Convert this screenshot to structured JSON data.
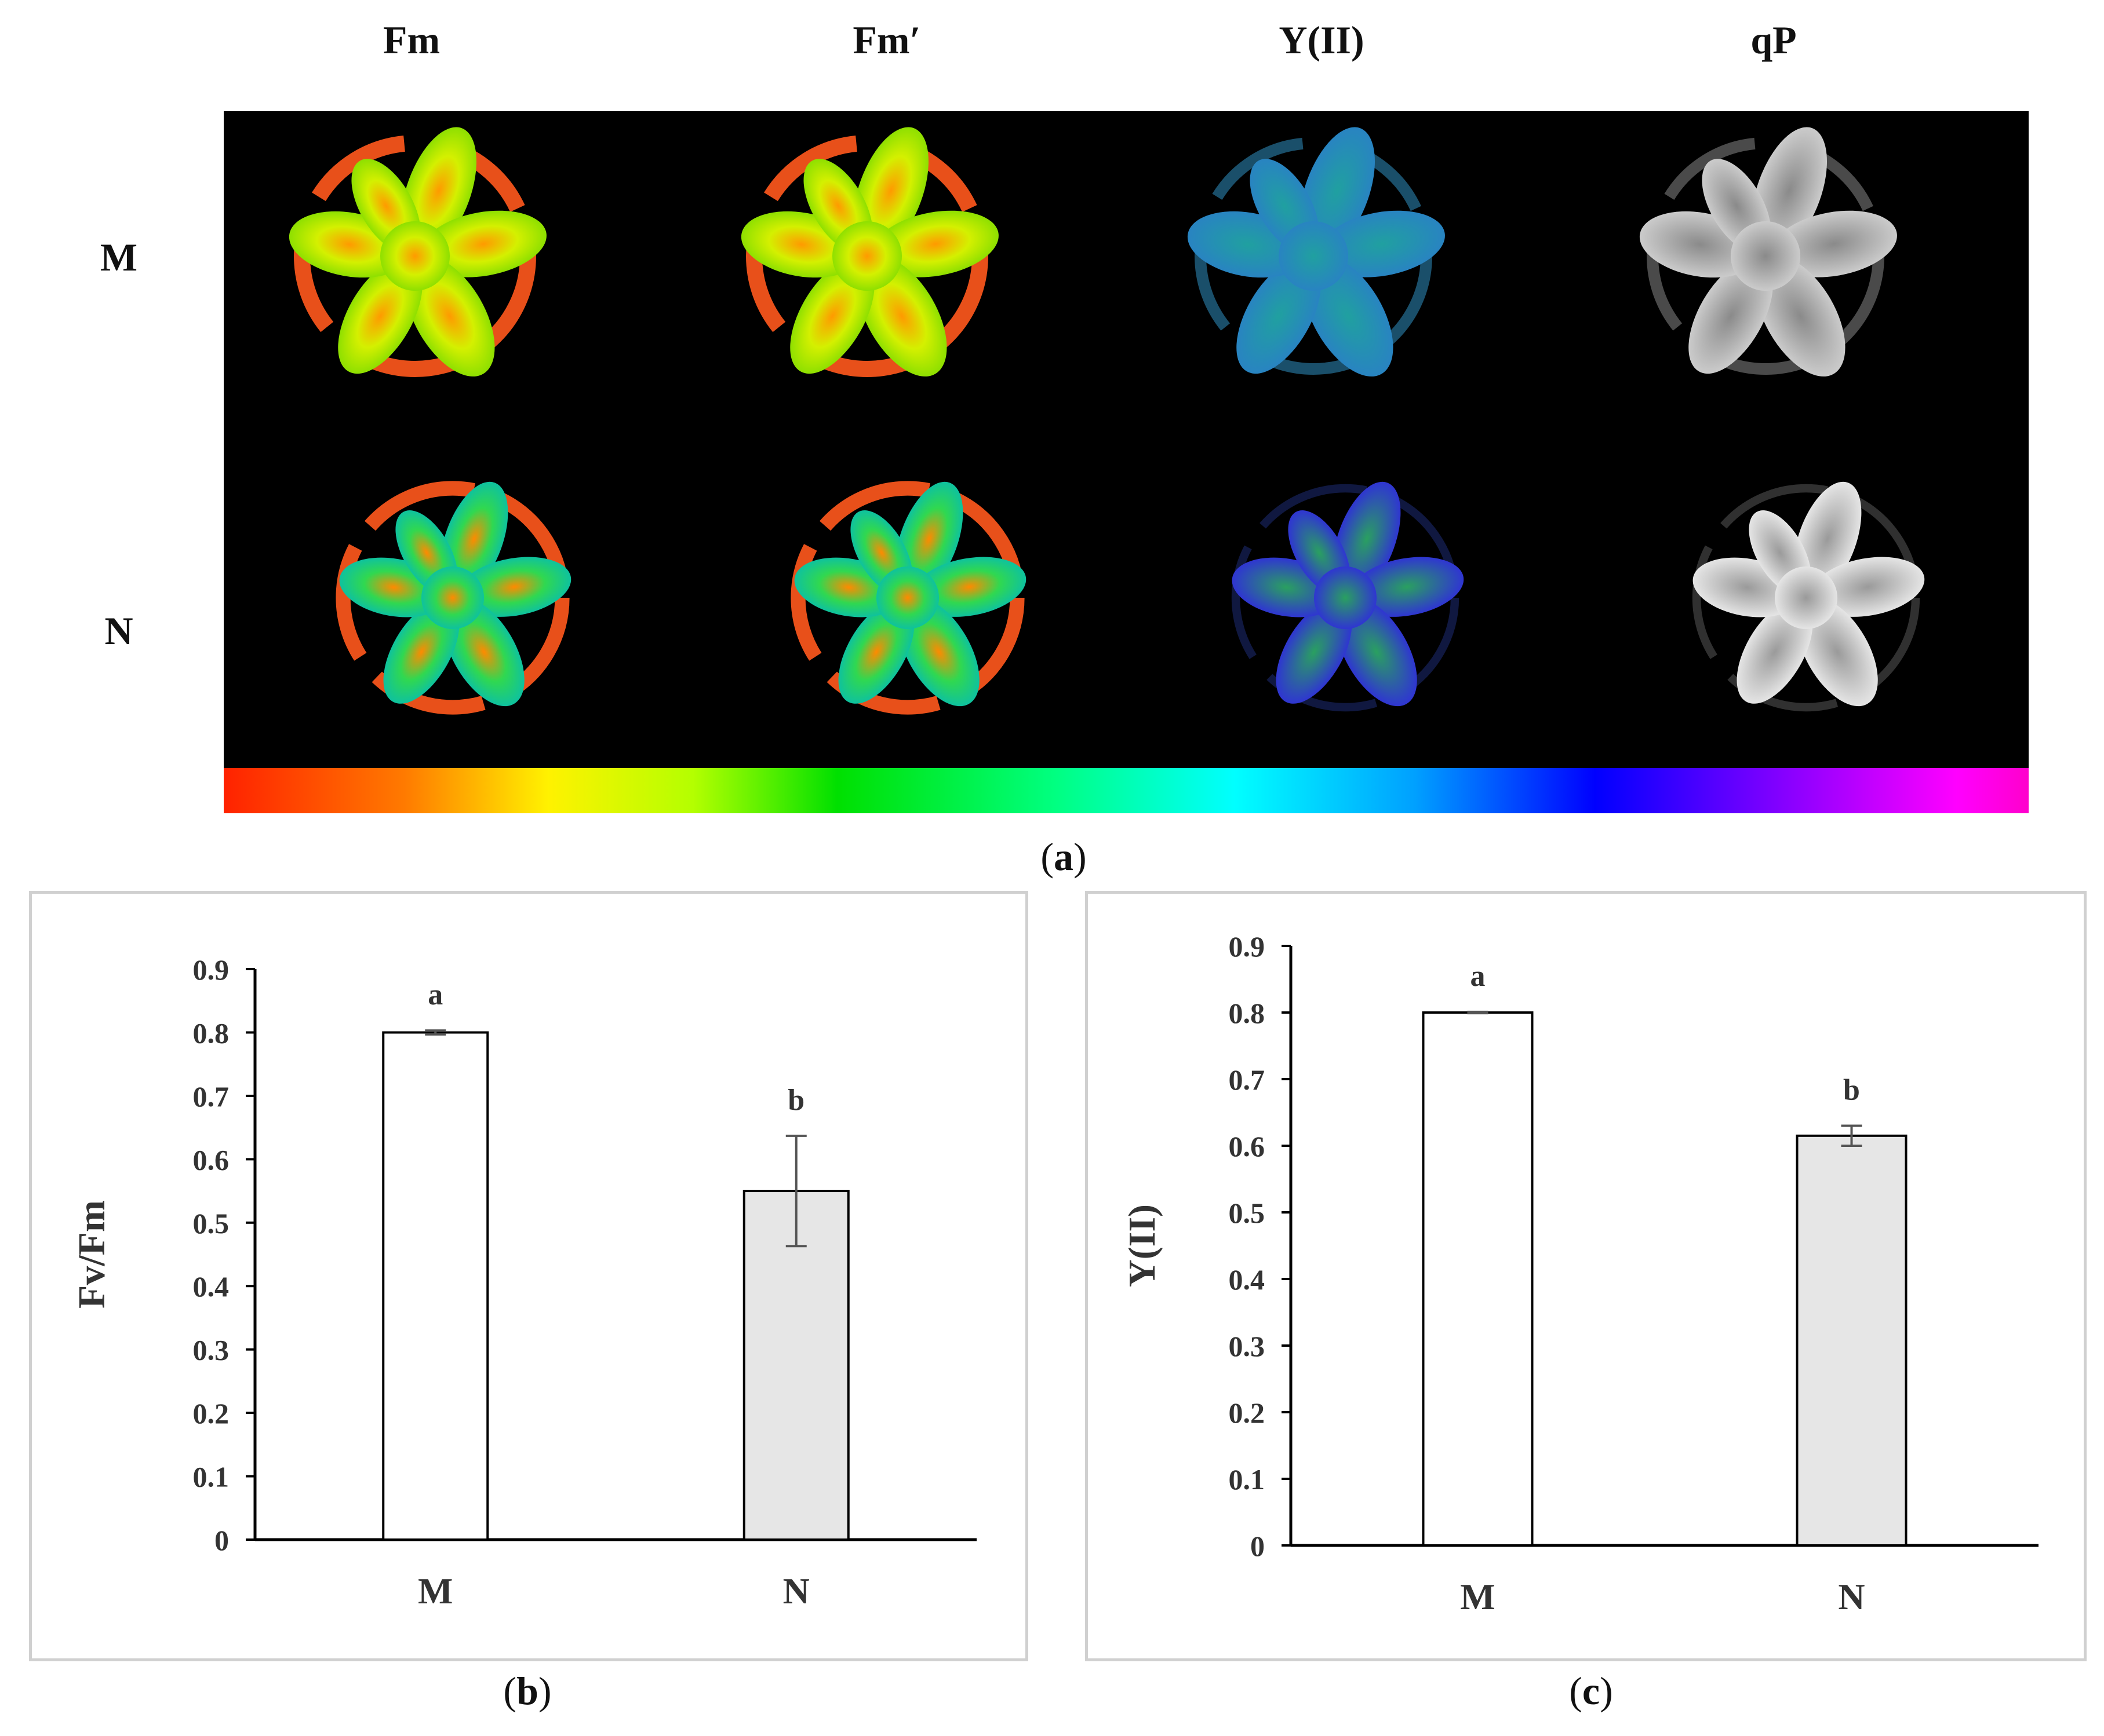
{
  "panel_a": {
    "column_headers": [
      "Fm",
      "Fm′",
      "Y(II)",
      "qP"
    ],
    "row_labels": [
      "M",
      "N"
    ],
    "caption_letter": "a",
    "colorbar": "rainbow-scale-red-to-magenta",
    "colors": {
      "Fm": "#e84a10",
      "Fm_leaf": "#b8e000",
      "YII_M": "#2a8fc8",
      "YII_N": "#3a30e0",
      "qP": "#dcdcdc"
    }
  },
  "chart_data": [
    {
      "type": "bar",
      "categories": [
        "M",
        "N"
      ],
      "values": [
        0.8,
        0.55
      ],
      "errors": [
        0.003,
        0.087
      ],
      "significance": [
        "a",
        "b"
      ],
      "bar_colors": [
        "#ffffff",
        "#e6e6e6"
      ],
      "title": "",
      "xlabel": "",
      "ylabel": "Fv/Fm",
      "ylim": [
        0,
        0.9
      ],
      "yticks": [
        "0",
        "0.1",
        "0.2",
        "0.3",
        "0.4",
        "0.5",
        "0.6",
        "0.7",
        "0.8",
        "0.9"
      ],
      "grid": false,
      "caption_letter": "b"
    },
    {
      "type": "bar",
      "categories": [
        "M",
        "N"
      ],
      "values": [
        0.8,
        0.615
      ],
      "errors": [
        0.001,
        0.015
      ],
      "significance": [
        "a",
        "b"
      ],
      "bar_colors": [
        "#ffffff",
        "#e6e6e6"
      ],
      "title": "",
      "xlabel": "",
      "ylabel": "Y(II)",
      "ylim": [
        0,
        0.9
      ],
      "yticks": [
        "0",
        "0.1",
        "0.2",
        "0.3",
        "0.4",
        "0.5",
        "0.6",
        "0.7",
        "0.8",
        "0.9"
      ],
      "grid": false,
      "caption_letter": "c"
    }
  ]
}
